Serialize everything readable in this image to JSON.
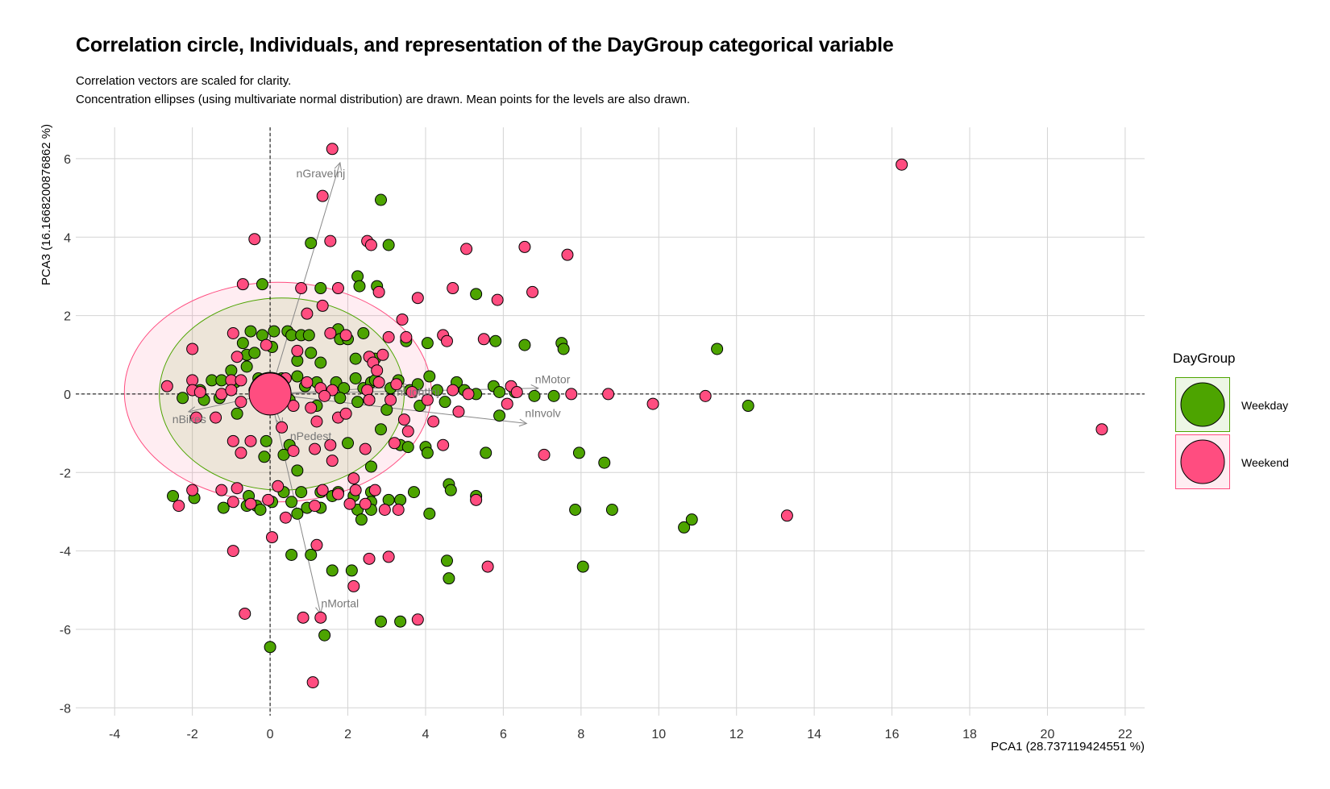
{
  "title": "Correlation circle, Individuals, and representation of the DayGroup categorical variable",
  "subtitle_lines": [
    "Correlation vectors are scaled for clarity.",
    "Concentration ellipses (using multivariate normal distribution) are drawn. Mean points for the levels are also drawn."
  ],
  "chart_data": {
    "type": "scatter",
    "title": "Correlation circle, Individuals, and representation of the DayGroup categorical variable",
    "xlabel": "PCA1 (28.737119424551 %)",
    "ylabel": "PCA3 (16.1668200876862 %)",
    "xlim": [
      -5,
      22.5
    ],
    "ylim": [
      -8.2,
      6.8
    ],
    "xticks": [
      -4,
      -2,
      0,
      2,
      4,
      6,
      8,
      10,
      12,
      14,
      16,
      18,
      20,
      22
    ],
    "yticks": [
      -8,
      -6,
      -4,
      -2,
      0,
      2,
      4,
      6
    ],
    "grid": true,
    "legend": {
      "title": "DayGroup",
      "position": "right",
      "entries": [
        {
          "label": "Weekday",
          "color": "#4da400"
        },
        {
          "label": "Weekend",
          "color": "#ff4d80"
        }
      ]
    },
    "ellipses": [
      {
        "group": "Weekend",
        "cx": 0.2,
        "cy": 0.05,
        "rx": 3.95,
        "ry": 2.8,
        "color": "#ff4d80"
      },
      {
        "group": "Weekday",
        "cx": 0.3,
        "cy": 0.0,
        "rx": 3.15,
        "ry": 2.45,
        "color": "#4da400"
      }
    ],
    "mean_points": [
      {
        "group": "Weekday",
        "x": 0.0,
        "y": 0.02
      },
      {
        "group": "Weekend",
        "x": 0.0,
        "y": 0.0
      }
    ],
    "vectors": [
      {
        "name": "nGraveInj",
        "x": 1.8,
        "y": 5.9
      },
      {
        "name": "nMotor",
        "x": 6.9,
        "y": 0.15
      },
      {
        "name": "nInvolv",
        "x": 6.6,
        "y": -0.75
      },
      {
        "name": "nBikes",
        "x": -2.1,
        "y": -0.45
      },
      {
        "name": "nPedest",
        "x": 0.3,
        "y": -0.8
      },
      {
        "name": "nMortal",
        "x": 1.3,
        "y": -5.6
      },
      {
        "name": "nLightInj",
        "x": 3.6,
        "y": 0.2
      }
    ],
    "series": [
      {
        "name": "Weekday",
        "color": "#4da400",
        "points": [
          [
            2.85,
            4.95
          ],
          [
            1.05,
            3.85
          ],
          [
            3.05,
            3.8
          ],
          [
            2.25,
            3.0
          ],
          [
            2.3,
            2.75
          ],
          [
            2.75,
            2.75
          ],
          [
            -0.2,
            2.8
          ],
          [
            1.3,
            2.7
          ],
          [
            5.3,
            2.55
          ],
          [
            5.8,
            1.35
          ],
          [
            6.55,
            1.25
          ],
          [
            7.5,
            1.3
          ],
          [
            7.55,
            1.15
          ],
          [
            11.5,
            1.15
          ],
          [
            -0.5,
            1.6
          ],
          [
            -0.2,
            1.5
          ],
          [
            0.1,
            1.6
          ],
          [
            0.45,
            1.6
          ],
          [
            0.55,
            1.5
          ],
          [
            0.8,
            1.5
          ],
          [
            1.0,
            1.5
          ],
          [
            1.05,
            1.05
          ],
          [
            1.75,
            1.65
          ],
          [
            1.8,
            1.4
          ],
          [
            2.0,
            1.4
          ],
          [
            2.4,
            1.55
          ],
          [
            2.2,
            0.9
          ],
          [
            3.5,
            1.35
          ],
          [
            4.05,
            1.3
          ],
          [
            -0.7,
            1.3
          ],
          [
            -0.6,
            1.0
          ],
          [
            -0.4,
            1.05
          ],
          [
            0.05,
            1.2
          ],
          [
            0.7,
            0.85
          ],
          [
            1.3,
            0.8
          ],
          [
            2.7,
            0.9
          ],
          [
            3.3,
            0.35
          ],
          [
            -1.0,
            0.6
          ],
          [
            -0.6,
            0.7
          ],
          [
            -1.5,
            0.35
          ],
          [
            -1.25,
            0.35
          ],
          [
            -1.8,
            0.1
          ],
          [
            -2.25,
            -0.1
          ],
          [
            -1.7,
            -0.15
          ],
          [
            -0.9,
            0.3
          ],
          [
            -0.3,
            0.4
          ],
          [
            0.3,
            0.4
          ],
          [
            0.7,
            0.45
          ],
          [
            0.9,
            0.2
          ],
          [
            1.2,
            0.3
          ],
          [
            1.7,
            0.3
          ],
          [
            1.9,
            0.15
          ],
          [
            2.2,
            0.4
          ],
          [
            2.4,
            0.15
          ],
          [
            2.6,
            0.3
          ],
          [
            2.7,
            0.35
          ],
          [
            3.1,
            0.15
          ],
          [
            3.6,
            0.1
          ],
          [
            3.8,
            0.25
          ],
          [
            4.1,
            0.45
          ],
          [
            4.3,
            0.1
          ],
          [
            4.8,
            0.3
          ],
          [
            5.0,
            0.1
          ],
          [
            5.3,
            0.0
          ],
          [
            5.75,
            0.2
          ],
          [
            5.9,
            0.05
          ],
          [
            6.3,
            0.05
          ],
          [
            6.8,
            -0.05
          ],
          [
            7.3,
            -0.05
          ],
          [
            12.3,
            -0.3
          ],
          [
            0.5,
            -0.15
          ],
          [
            1.2,
            -0.3
          ],
          [
            1.8,
            -0.1
          ],
          [
            2.25,
            -0.2
          ],
          [
            2.55,
            -0.15
          ],
          [
            3.0,
            -0.4
          ],
          [
            3.85,
            -0.3
          ],
          [
            4.5,
            -0.2
          ],
          [
            5.9,
            -0.55
          ],
          [
            -0.85,
            -0.5
          ],
          [
            -1.3,
            -0.1
          ],
          [
            2.85,
            -0.9
          ],
          [
            0.5,
            -1.3
          ],
          [
            0.35,
            -1.55
          ],
          [
            0.7,
            -1.95
          ],
          [
            -0.1,
            -1.2
          ],
          [
            -0.15,
            -1.6
          ],
          [
            2.0,
            -1.25
          ],
          [
            2.6,
            -1.85
          ],
          [
            3.35,
            -1.3
          ],
          [
            3.55,
            -1.35
          ],
          [
            4.0,
            -1.35
          ],
          [
            4.05,
            -1.5
          ],
          [
            5.55,
            -1.5
          ],
          [
            7.95,
            -1.5
          ],
          [
            8.6,
            -1.75
          ],
          [
            -2.5,
            -2.6
          ],
          [
            -1.95,
            -2.65
          ],
          [
            -1.2,
            -2.9
          ],
          [
            -0.55,
            -2.6
          ],
          [
            -0.6,
            -2.85
          ],
          [
            -0.35,
            -2.85
          ],
          [
            -0.25,
            -2.95
          ],
          [
            0.05,
            -2.75
          ],
          [
            0.35,
            -2.5
          ],
          [
            0.55,
            -2.75
          ],
          [
            0.8,
            -2.5
          ],
          [
            0.7,
            -3.05
          ],
          [
            0.95,
            -2.9
          ],
          [
            1.3,
            -2.5
          ],
          [
            1.3,
            -2.9
          ],
          [
            1.6,
            -2.6
          ],
          [
            1.75,
            -2.5
          ],
          [
            2.15,
            -2.6
          ],
          [
            2.25,
            -2.95
          ],
          [
            2.35,
            -3.2
          ],
          [
            2.6,
            -2.5
          ],
          [
            2.6,
            -2.75
          ],
          [
            2.6,
            -2.95
          ],
          [
            3.05,
            -2.7
          ],
          [
            3.35,
            -2.7
          ],
          [
            3.7,
            -2.5
          ],
          [
            4.1,
            -3.05
          ],
          [
            4.6,
            -2.3
          ],
          [
            4.65,
            -2.45
          ],
          [
            5.3,
            -2.6
          ],
          [
            7.85,
            -2.95
          ],
          [
            8.8,
            -2.95
          ],
          [
            10.65,
            -3.4
          ],
          [
            10.85,
            -3.2
          ],
          [
            0.55,
            -4.1
          ],
          [
            1.05,
            -4.1
          ],
          [
            1.6,
            -4.5
          ],
          [
            2.1,
            -4.5
          ],
          [
            4.55,
            -4.25
          ],
          [
            4.6,
            -4.7
          ],
          [
            8.05,
            -4.4
          ],
          [
            2.85,
            -5.8
          ],
          [
            3.35,
            -5.8
          ],
          [
            1.4,
            -6.15
          ],
          [
            0.0,
            -6.45
          ]
        ]
      },
      {
        "name": "Weekend",
        "color": "#ff4d80",
        "points": [
          [
            1.6,
            6.25
          ],
          [
            16.25,
            5.85
          ],
          [
            1.35,
            5.05
          ],
          [
            -0.4,
            3.95
          ],
          [
            1.55,
            3.9
          ],
          [
            2.5,
            3.9
          ],
          [
            2.6,
            3.8
          ],
          [
            5.05,
            3.7
          ],
          [
            6.55,
            3.75
          ],
          [
            7.65,
            3.55
          ],
          [
            -0.7,
            2.8
          ],
          [
            0.8,
            2.7
          ],
          [
            1.75,
            2.7
          ],
          [
            2.8,
            2.6
          ],
          [
            3.8,
            2.45
          ],
          [
            4.7,
            2.7
          ],
          [
            5.85,
            2.4
          ],
          [
            6.75,
            2.6
          ],
          [
            0.95,
            2.05
          ],
          [
            1.35,
            2.25
          ],
          [
            3.4,
            1.9
          ],
          [
            -0.95,
            1.55
          ],
          [
            1.55,
            1.55
          ],
          [
            1.95,
            1.5
          ],
          [
            3.05,
            1.45
          ],
          [
            3.5,
            1.45
          ],
          [
            4.45,
            1.5
          ],
          [
            4.55,
            1.35
          ],
          [
            5.5,
            1.4
          ],
          [
            -2.0,
            1.15
          ],
          [
            -0.85,
            0.95
          ],
          [
            -0.1,
            1.25
          ],
          [
            0.7,
            1.1
          ],
          [
            2.55,
            0.95
          ],
          [
            2.65,
            0.8
          ],
          [
            2.75,
            0.6
          ],
          [
            2.9,
            1.0
          ],
          [
            -2.0,
            0.35
          ],
          [
            -1.0,
            0.35
          ],
          [
            -0.75,
            0.35
          ],
          [
            -0.4,
            0.1
          ],
          [
            0.4,
            0.4
          ],
          [
            0.95,
            0.3
          ],
          [
            1.3,
            0.15
          ],
          [
            1.6,
            0.1
          ],
          [
            2.5,
            0.1
          ],
          [
            2.8,
            0.3
          ],
          [
            3.25,
            0.25
          ],
          [
            3.65,
            0.05
          ],
          [
            4.7,
            0.1
          ],
          [
            5.1,
            0.0
          ],
          [
            6.2,
            0.2
          ],
          [
            6.35,
            0.05
          ],
          [
            7.75,
            0.0
          ],
          [
            8.7,
            0.0
          ],
          [
            11.2,
            -0.05
          ],
          [
            9.85,
            -0.25
          ],
          [
            -2.65,
            0.2
          ],
          [
            -2.0,
            0.1
          ],
          [
            -1.8,
            0.05
          ],
          [
            -1.25,
            0.0
          ],
          [
            -1.0,
            0.1
          ],
          [
            -0.75,
            -0.2
          ],
          [
            0.25,
            -0.05
          ],
          [
            0.6,
            -0.3
          ],
          [
            1.05,
            -0.35
          ],
          [
            1.4,
            -0.05
          ],
          [
            1.75,
            -0.6
          ],
          [
            2.55,
            -0.15
          ],
          [
            3.1,
            -0.15
          ],
          [
            4.05,
            -0.15
          ],
          [
            4.2,
            -0.7
          ],
          [
            4.85,
            -0.45
          ],
          [
            6.1,
            -0.25
          ],
          [
            -1.9,
            -0.6
          ],
          [
            -1.4,
            -0.6
          ],
          [
            0.3,
            -0.85
          ],
          [
            1.2,
            -0.7
          ],
          [
            1.95,
            -0.5
          ],
          [
            3.45,
            -0.65
          ],
          [
            3.55,
            -0.95
          ],
          [
            -0.95,
            -1.2
          ],
          [
            -0.5,
            -1.2
          ],
          [
            -0.75,
            -1.5
          ],
          [
            0.6,
            -1.45
          ],
          [
            1.15,
            -1.4
          ],
          [
            1.55,
            -1.3
          ],
          [
            1.6,
            -1.7
          ],
          [
            2.45,
            -1.4
          ],
          [
            3.2,
            -1.25
          ],
          [
            4.45,
            -1.3
          ],
          [
            7.05,
            -1.55
          ],
          [
            -2.0,
            -2.45
          ],
          [
            -1.25,
            -2.45
          ],
          [
            -0.85,
            -2.4
          ],
          [
            -0.5,
            -2.8
          ],
          [
            0.2,
            -2.35
          ],
          [
            1.15,
            -2.85
          ],
          [
            1.35,
            -2.45
          ],
          [
            1.75,
            -2.55
          ],
          [
            2.05,
            -2.8
          ],
          [
            2.15,
            -2.15
          ],
          [
            2.2,
            -2.45
          ],
          [
            2.45,
            -2.8
          ],
          [
            2.7,
            -2.45
          ],
          [
            2.95,
            -2.95
          ],
          [
            3.3,
            -2.95
          ],
          [
            5.3,
            -2.7
          ],
          [
            13.3,
            -3.1
          ],
          [
            -2.35,
            -2.85
          ],
          [
            -0.95,
            -2.75
          ],
          [
            -0.05,
            -2.7
          ],
          [
            0.05,
            -3.65
          ],
          [
            0.4,
            -3.15
          ],
          [
            1.2,
            -3.85
          ],
          [
            -0.95,
            -4.0
          ],
          [
            2.55,
            -4.2
          ],
          [
            3.05,
            -4.15
          ],
          [
            5.6,
            -4.4
          ],
          [
            2.15,
            -4.9
          ],
          [
            -0.65,
            -5.6
          ],
          [
            0.85,
            -5.7
          ],
          [
            1.3,
            -5.7
          ],
          [
            3.8,
            -5.75
          ],
          [
            1.1,
            -7.35
          ],
          [
            21.4,
            -0.9
          ]
        ]
      }
    ]
  }
}
